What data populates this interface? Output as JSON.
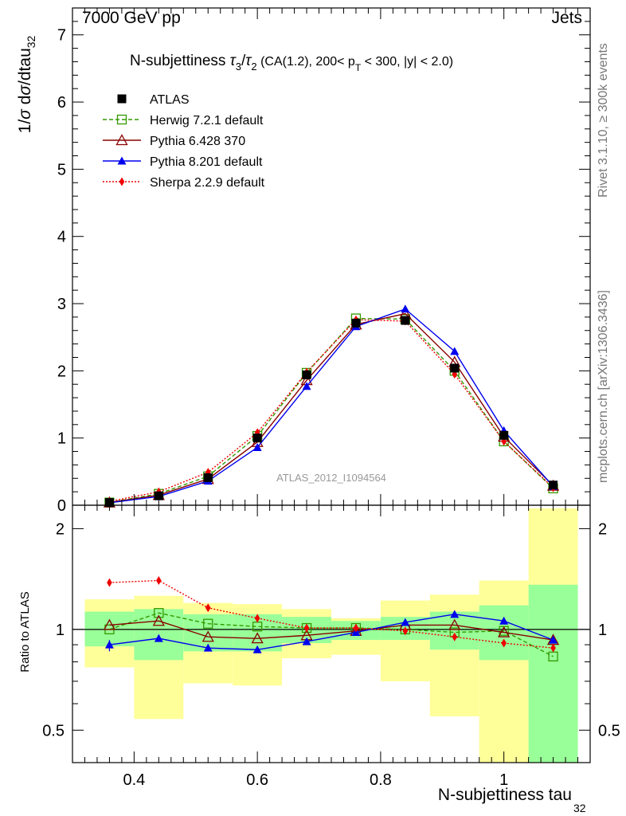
{
  "header": {
    "energy_label": "7000 GeV pp",
    "category_label": "Jets",
    "rivet_label": "Rivet 3.1.10, ≥ 300k events",
    "mcplots_label": "mcplots.cern.ch [arXiv:1306.3436]",
    "analysis_label": "ATLAS_2012_I1094564"
  },
  "chart_data": [
    {
      "type": "scatter",
      "panel": "main",
      "title": "N-subjettiness τ₃/τ₂ (CA(1.2), 200< p_T < 300, |y| < 2.0)",
      "ylabel": "1/σ dσ/dtau_32",
      "xlim": [
        0.3,
        1.14
      ],
      "ylim": [
        0,
        7.4
      ],
      "y_ticks": [
        0,
        1,
        2,
        3,
        4,
        5,
        6,
        7
      ],
      "x": [
        0.36,
        0.44,
        0.52,
        0.6,
        0.68,
        0.76,
        0.84,
        0.92,
        1.0,
        1.08
      ],
      "series": [
        {
          "name": "ATLAS",
          "color": "#000000",
          "marker": "filled-square",
          "line": "none",
          "values": [
            0.04,
            0.14,
            0.41,
            1.0,
            1.94,
            2.71,
            2.75,
            2.04,
            1.04,
            0.3
          ]
        },
        {
          "name": "Herwig 7.2.1 default",
          "color": "#339900",
          "marker": "open-square",
          "line": "dashed",
          "values": [
            0.04,
            0.17,
            0.43,
            1.03,
            1.97,
            2.78,
            2.77,
            2.0,
            0.95,
            0.25
          ]
        },
        {
          "name": "Pythia 6.428 370",
          "color": "#880000",
          "marker": "open-triangle",
          "line": "solid",
          "values": [
            0.04,
            0.15,
            0.39,
            0.94,
            1.86,
            2.69,
            2.85,
            2.13,
            1.02,
            0.29
          ]
        },
        {
          "name": "Pythia 8.201 default",
          "color": "#0000ee",
          "marker": "filled-triangle",
          "line": "solid",
          "values": [
            0.036,
            0.13,
            0.36,
            0.86,
            1.77,
            2.66,
            2.92,
            2.29,
            1.11,
            0.28
          ]
        },
        {
          "name": "Sherpa 2.2.9 default",
          "color": "#ee0000",
          "marker": "filled-diamond",
          "line": "dotted",
          "values": [
            0.057,
            0.2,
            0.49,
            1.08,
            1.98,
            2.76,
            2.74,
            1.95,
            0.95,
            0.26
          ]
        }
      ]
    },
    {
      "type": "scatter",
      "panel": "ratio",
      "xlabel": "N-subjettiness tau_32",
      "ylabel": "Ratio to ATLAS",
      "yscale": "log",
      "xlim": [
        0.3,
        1.14
      ],
      "ylim": [
        0.4,
        2.35
      ],
      "x_ticks": [
        0.4,
        0.6,
        0.8,
        1.0
      ],
      "x_tick_labels": [
        "0.4",
        "0.6",
        "0.8",
        "1"
      ],
      "y_ticks": [
        0.5,
        1,
        2
      ],
      "y_tick_labels": [
        "0.5",
        "1",
        "2"
      ],
      "bands": {
        "bin_edges": [
          0.32,
          0.4,
          0.48,
          0.56,
          0.64,
          0.72,
          0.8,
          0.88,
          0.96,
          1.04,
          1.12
        ],
        "inner_color": "#99ff99",
        "outer_color": "#ffff99",
        "inner_low": [
          0.89,
          0.81,
          0.86,
          0.86,
          0.91,
          0.93,
          0.93,
          0.87,
          0.81,
          0.37
        ],
        "inner_high": [
          1.13,
          1.15,
          1.11,
          1.11,
          1.09,
          1.06,
          1.09,
          1.13,
          1.18,
          1.36
        ],
        "outer_low": [
          0.77,
          0.54,
          0.69,
          0.68,
          0.82,
          0.84,
          0.7,
          0.55,
          0.35,
          0.35
        ],
        "outer_high": [
          1.23,
          1.26,
          1.2,
          1.19,
          1.15,
          1.08,
          1.22,
          1.27,
          1.4,
          2.3
        ]
      },
      "series": [
        {
          "name": "Herwig 7.2.1 default",
          "color": "#339900",
          "values": [
            1.0,
            1.12,
            1.04,
            1.02,
            1.01,
            1.01,
            1.0,
            0.98,
            0.99,
            0.83
          ]
        },
        {
          "name": "Pythia 6.428 370",
          "color": "#880000",
          "values": [
            1.03,
            1.06,
            0.95,
            0.94,
            0.96,
            0.99,
            1.03,
            1.03,
            0.98,
            0.93
          ]
        },
        {
          "name": "Pythia 8.201 default",
          "color": "#0000ee",
          "values": [
            0.9,
            0.94,
            0.88,
            0.87,
            0.92,
            0.98,
            1.05,
            1.11,
            1.06,
            0.93
          ]
        },
        {
          "name": "Sherpa 2.2.9 default",
          "color": "#ee0000",
          "values": [
            1.38,
            1.4,
            1.16,
            1.08,
            1.01,
            1.01,
            0.99,
            0.95,
            0.91,
            0.88
          ]
        }
      ]
    }
  ]
}
